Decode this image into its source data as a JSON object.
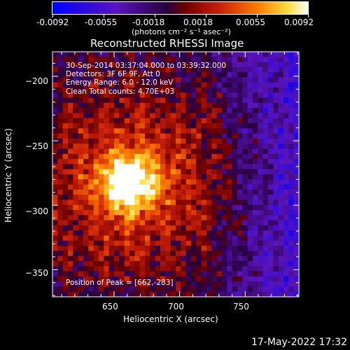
{
  "colorbar": {
    "ticks": [
      "-0.0092",
      "-0.0055",
      "-0.0018",
      "0.0018",
      "0.0055",
      "0.0092"
    ],
    "units": "(photons cm⁻² s⁻¹ asec⁻²)",
    "range": [
      -0.0092,
      0.0092
    ]
  },
  "header": {
    "title": "Reconstructed RHESSI Image"
  },
  "overlay": {
    "line1": "30-Sep-2014 03:37:04.000 to 03:39:32.000",
    "line2": "Detectors: 3F 6F 9F, Att 0",
    "line3": "Energy Range: 6.0 - 12.0 keV",
    "line4": "Clean     Total counts: 4.70E+03",
    "peak": "Position of Peak = [662,-283]"
  },
  "footer": {
    "timestamp": "17-May-2022 17:32"
  },
  "chart_data": {
    "type": "heatmap",
    "title": "Reconstructed RHESSI Image",
    "xlabel": "Heliocentric X (arcsec)",
    "ylabel": "Heliocentric Y (arcsec)",
    "xlim": [
      603,
      791
    ],
    "ylim": [
      -371,
      -181
    ],
    "xticks": [
      650,
      700,
      750
    ],
    "xtick_labels": [
      "650",
      "700",
      "750"
    ],
    "yticks": [
      -200,
      -250,
      -300,
      -350
    ],
    "ytick_labels": [
      "−200",
      "−250",
      "−300",
      "−350"
    ],
    "peak_position": [
      662,
      -283
    ],
    "colormap": "red-temperature with blue/purple negatives",
    "colors": {
      "negative": "#3b0f8a",
      "low": "#7a0a0a",
      "mid": "#d84010",
      "high": "#ffd040",
      "peak": "#ffffe0"
    }
  }
}
